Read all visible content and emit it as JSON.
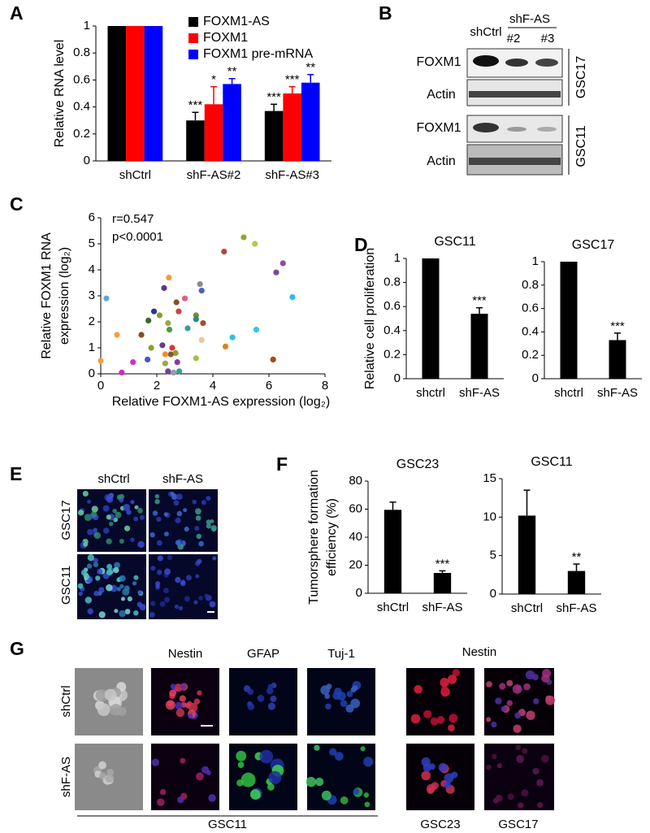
{
  "panels": [
    "A",
    "B",
    "C",
    "D",
    "E",
    "F",
    "G"
  ],
  "chart_data": [
    {
      "type": "bar",
      "categories": [
        "shCtrl",
        "shF-AS#2",
        "shF-AS#3"
      ],
      "series": [
        {
          "name": "FOXM1-AS",
          "color": "#000000",
          "values": [
            1,
            0.3,
            0.37
          ],
          "errors": [
            null,
            0.06,
            0.05
          ],
          "significance": [
            null,
            "***",
            "***"
          ]
        },
        {
          "name": "FOXM1",
          "color": "#ff0000",
          "values": [
            1,
            0.42,
            0.5
          ],
          "errors": [
            null,
            0.13,
            0.05
          ],
          "significance": [
            null,
            "*",
            "***"
          ]
        },
        {
          "name": "FOXM1 pre-mRNA",
          "color": "#0000ff",
          "values": [
            1,
            0.57,
            0.58
          ],
          "errors": [
            null,
            0.04,
            0.06
          ],
          "significance": [
            null,
            "**",
            "**"
          ]
        }
      ],
      "ylabel": [
        "Relative RNA level"
      ],
      "ylim": [
        0,
        1
      ],
      "yticks": [
        0,
        0.2,
        0.4,
        0.6,
        0.8,
        1
      ],
      "legend": "upper right"
    },
    {
      "type": "scatter",
      "x": [
        5.1,
        5.5,
        6.5,
        6.26,
        4.4,
        2.43,
        3.54,
        3.6,
        6.84,
        2.26,
        0.2,
        3.0,
        1.9,
        2.1,
        2.7,
        2.78,
        3.4,
        3.4,
        1.7,
        2.4,
        3.65,
        2.45,
        1.45,
        0.58,
        3.1,
        3.6,
        4.7,
        5.55,
        4.45,
        6.15,
        2.2,
        2.55,
        2.67,
        2.5,
        2.3,
        2.73,
        1.8,
        1.67,
        0,
        1.15,
        0.75,
        2.3,
        2.6,
        2.4,
        2.8,
        3.4
      ],
      "values": [
        5.25,
        5.0,
        4.25,
        3.9,
        4.7,
        3.7,
        3.45,
        3.2,
        2.95,
        3.3,
        2.9,
        2.9,
        2.4,
        2.25,
        2.75,
        2.4,
        2.25,
        2.1,
        2.05,
        1.95,
        1.95,
        1.7,
        1.5,
        1.5,
        1.75,
        1.3,
        1.4,
        1.7,
        1.05,
        0.55,
        1.1,
        1.0,
        0.8,
        0.75,
        0.75,
        0.45,
        1.0,
        0.55,
        0.5,
        0.45,
        0.05,
        0.4,
        0.05,
        0.1,
        0.1,
        0.6
      ],
      "colors": [
        "#8fa63a",
        "#b5c94a",
        "#8a4d9e",
        "#7a4a9a",
        "#b0463d",
        "#f0a030",
        "#8c8c8c",
        "#4a5fc4",
        "#20c0e8",
        "#5a3a8a",
        "#60a8d8",
        "#e06080",
        "#2a3a80",
        "#8a9a30",
        "#8a4a2a",
        "#d04040",
        "#7a8a30",
        "#2a8a8a",
        "#3a6a2a",
        "#9aaa40",
        "#a0502a",
        "#40a040",
        "#8a4a20",
        "#f0a040",
        "#3a9a9a",
        "#e8c8a0",
        "#30c0e0",
        "#30c8e8",
        "#e08020",
        "#a04a20",
        "#6a3a8a",
        "#d03a3a",
        "#9a9a30",
        "#8a5a2a",
        "#e89030",
        "#8a3a9a",
        "#8aa030",
        "#3a5ad0",
        "#f0a040",
        "#d030d0",
        "#c030c0",
        "#9aaa40",
        "#9a9a9a",
        "#7a3aa0",
        "#3a9aa0",
        "#a0c050"
      ],
      "annotations": [
        "r=0.547",
        "p<0.0001"
      ],
      "xlabel": "Relative FOXM1-AS expression (log₂)",
      "ylabel": [
        "Relative FOXM1 RNA",
        "expression (log₂)"
      ],
      "xlim": [
        0,
        8
      ],
      "ylim": [
        0,
        6
      ],
      "xticks": [
        0,
        2,
        4,
        6,
        8
      ],
      "yticks": [
        0,
        1,
        2,
        3,
        4,
        5,
        6
      ]
    },
    {
      "type": "bar",
      "title": "GSC11",
      "categories": [
        "shctrl",
        "shF-AS"
      ],
      "values": [
        1,
        0.54
      ],
      "errors": [
        null,
        0.05
      ],
      "significance": [
        null,
        "***"
      ],
      "color": "#000000",
      "ylabel": [
        "Relative cell proliferation"
      ],
      "ylim": [
        0,
        1
      ],
      "yticks": [
        0,
        0.2,
        0.4,
        0.6,
        0.8,
        1
      ]
    },
    {
      "type": "bar",
      "title": "GSC17",
      "categories": [
        "shctrl",
        "shF-AS"
      ],
      "values": [
        1,
        0.33
      ],
      "errors": [
        null,
        0.06
      ],
      "significance": [
        null,
        "***"
      ],
      "color": "#000000",
      "ylim": [
        0,
        1
      ],
      "yticks": [
        0,
        0.2,
        0.4,
        0.6,
        0.8,
        1
      ]
    },
    {
      "type": "bar",
      "title": "GSC23",
      "categories": [
        "shCtrl",
        "shF-AS"
      ],
      "values": [
        59.5,
        14.5
      ],
      "errors": [
        5.5,
        1.5
      ],
      "significance": [
        null,
        "***"
      ],
      "color": "#000000",
      "ylabel": [
        "Tumorsphere formation",
        "efficiency (%)"
      ],
      "ylim": [
        0,
        80
      ],
      "yticks": [
        0,
        20,
        40,
        60,
        80
      ]
    },
    {
      "type": "bar",
      "title": "GSC11",
      "categories": [
        "shCtrl",
        "shF-AS"
      ],
      "values": [
        10.2,
        3.0
      ],
      "errors": [
        3.3,
        0.9
      ],
      "significance": [
        null,
        "**"
      ],
      "color": "#000000",
      "ylim": [
        0,
        15
      ],
      "yticks": [
        0,
        5,
        10,
        15
      ]
    }
  ],
  "blot": {
    "columns": [
      "shCtrl",
      "shF-AS",
      "#2",
      "#3"
    ],
    "rows": [
      "FOXM1",
      "Actin",
      "FOXM1",
      "Actin"
    ],
    "cell_lines": [
      "GSC17",
      "GSC11"
    ]
  },
  "panel_e": {
    "columns": [
      "shCtrl",
      "shF-AS"
    ],
    "rows": [
      "GSC17",
      "GSC11"
    ]
  },
  "panel_g": {
    "columns": [
      "Nestin",
      "GFAP",
      "Tuj-1"
    ],
    "right_column": "Nestin",
    "rows": [
      "shCtrl",
      "shF-AS"
    ],
    "cell_lines": [
      "GSC11",
      "GSC23",
      "GSC17"
    ]
  }
}
